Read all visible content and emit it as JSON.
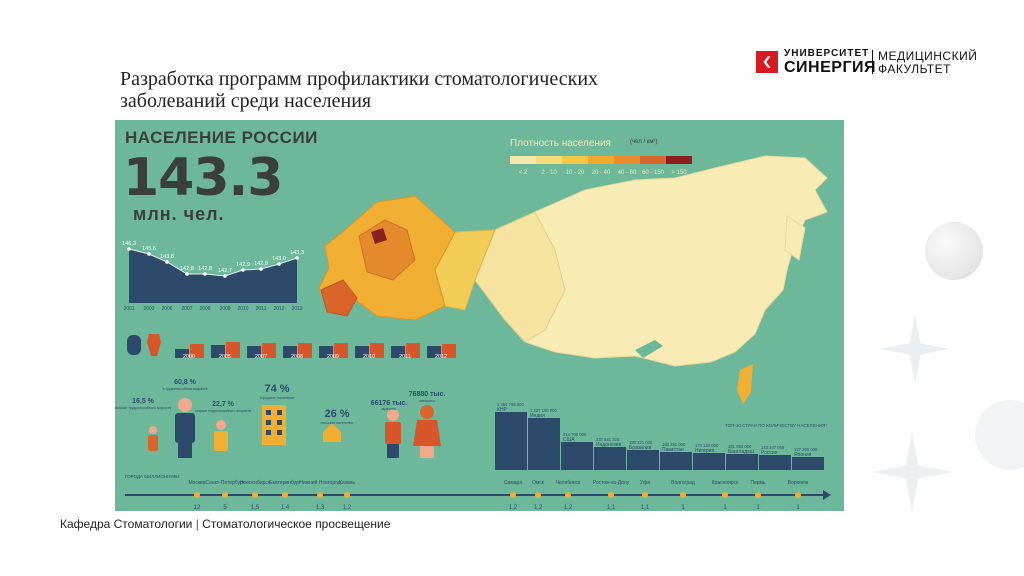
{
  "slide": {
    "title_line1": "Разработка программ профилактики стоматологических",
    "title_line2": "заболеваний среди населения",
    "footer_left": "Кафедра Стоматологии",
    "footer_sep": "|",
    "footer_right": "Стоматологическое просвещение"
  },
  "logo": {
    "line1": "УНИВЕРСИТЕТ",
    "line2": "СИНЕРГИЯ",
    "line3": "МЕДИЦИНСКИЙ",
    "line4": "ФАКУЛЬТЕТ",
    "color": "#d71a1f"
  },
  "infographic": {
    "title": "НАСЕЛЕНИЕ РОССИИ",
    "total": "143.3",
    "total_unit": "млн. чел.",
    "legend_title": "Плотность населения",
    "legend_unit": "(чел / км²)",
    "legend": [
      {
        "label": "< 2",
        "color": "#f7e9ab"
      },
      {
        "label": "2 - 10",
        "color": "#f6dc7a"
      },
      {
        "label": "10 - 20",
        "color": "#f3c842"
      },
      {
        "label": "20 - 40",
        "color": "#f0a92c"
      },
      {
        "label": "40 - 60",
        "color": "#e8892a"
      },
      {
        "label": "60 - 150",
        "color": "#d9652a"
      },
      {
        "label": "> 150",
        "color": "#8c1f1f"
      }
    ],
    "population_trend": {
      "years": [
        "2001",
        "2002",
        "2006",
        "2007",
        "2008",
        "2009",
        "2010",
        "2011",
        "2012",
        "2013"
      ],
      "values": [
        "146,3",
        "145,6",
        "143,8",
        "142,8",
        "142,8",
        "142,7",
        "142,9",
        "142,9",
        "143,0",
        "143,3"
      ]
    },
    "births_deaths": {
      "years": [
        "2000",
        "2005",
        "2007",
        "2008",
        "2009",
        "2010",
        "2011",
        "2012"
      ]
    },
    "demography": {
      "young": "16,5 %",
      "young_caption": "моложе трудоспособного возраста",
      "working": "60,8 %",
      "working_caption": "в трудоспособном возрасте",
      "old": "22,7 %",
      "old_caption": "старше трудоспособного возраста",
      "urban": "74 %",
      "urban_caption": "городское население",
      "rural": "26 %",
      "rural_caption": "сельское население",
      "men": "66176 тыс.",
      "men_caption": "мужчины",
      "women": "76880 тыс.",
      "women_caption": "женщины"
    },
    "top10": {
      "title": "ТОП-10 СТРАН ПО КОЛИЧЕСТВУ НАСЕЛЕНИЯ*",
      "countries": [
        {
          "name": "КНР",
          "value": "1 354 799 000"
        },
        {
          "name": "Индия",
          "value": "1 227 150 000"
        },
        {
          "name": "США",
          "value": "314 700 000"
        },
        {
          "name": "Индонезия",
          "value": "237 641 326"
        },
        {
          "name": "Бразилия",
          "value": "199 321 000"
        },
        {
          "name": "Пакистан",
          "value": "180 291 000"
        },
        {
          "name": "Нигерия",
          "value": "170 123 000"
        },
        {
          "name": "Бангладеш",
          "value": "161 083 000"
        },
        {
          "name": "Россия",
          "value": "143 347 059"
        },
        {
          "name": "Япония",
          "value": "127 360 000"
        }
      ]
    },
    "cities_label": "ГОРОДА МИЛЛИОННИКИ",
    "cities": [
      {
        "name": "Москва",
        "pop": "12"
      },
      {
        "name": "Санкт-Петербург",
        "pop": "5"
      },
      {
        "name": "Новосибирск",
        "pop": "1,5"
      },
      {
        "name": "Екатеринбург",
        "pop": "1,4"
      },
      {
        "name": "Нижний Новгород",
        "pop": "1,3"
      },
      {
        "name": "Казань",
        "pop": "1,2"
      },
      {
        "name": "Самара",
        "pop": "1,2"
      },
      {
        "name": "Омск",
        "pop": "1,2"
      },
      {
        "name": "Челябинск",
        "pop": "1,2"
      },
      {
        "name": "Ростов-на-Дону",
        "pop": "1,1"
      },
      {
        "name": "Уфа",
        "pop": "1,1"
      },
      {
        "name": "Волгоград",
        "pop": "1"
      },
      {
        "name": "Красноярск",
        "pop": "1"
      },
      {
        "name": "Пермь",
        "pop": "1"
      },
      {
        "name": "Воронеж",
        "pop": "1"
      }
    ]
  }
}
